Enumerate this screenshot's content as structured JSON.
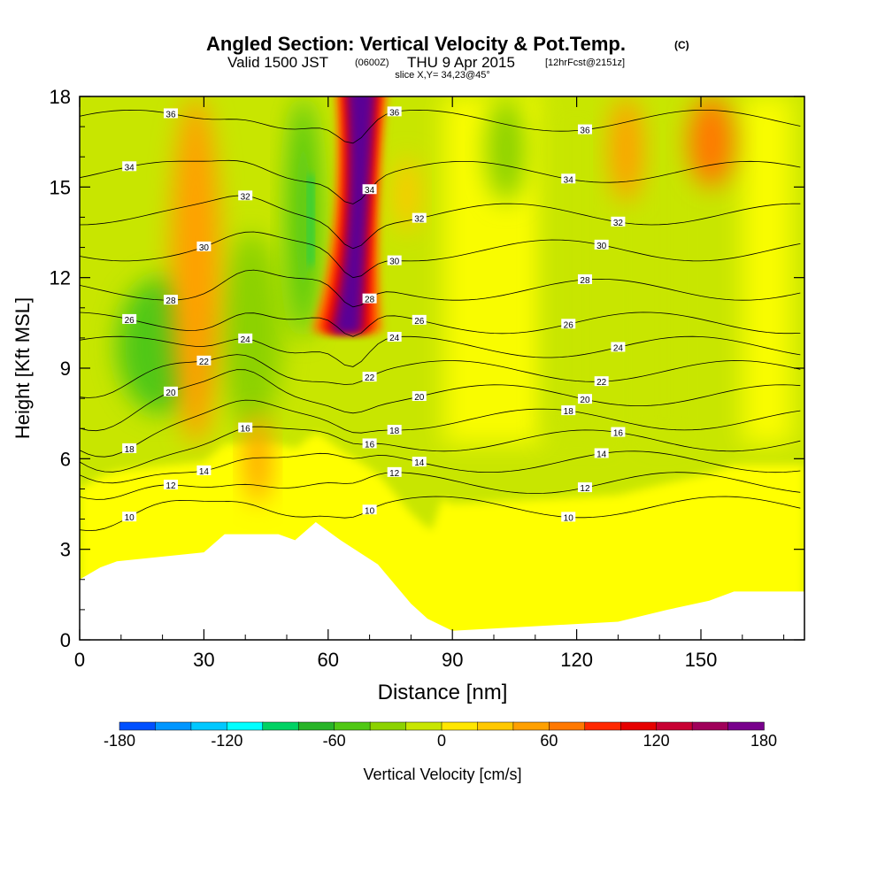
{
  "chart_data": {
    "type": "heatmap",
    "title": "Angled Section: Vertical Velocity & Pot.Temp.",
    "title_suffix": "(C)",
    "subtitle": {
      "valid": "Valid 1500 JST",
      "zulu": "(0600Z)",
      "date": "THU 9 Apr 2015",
      "forecast": "[12hrFcst@2151z]"
    },
    "slice_info": "slice X,Y= 34,23@45°",
    "xlabel": "Distance [nm]",
    "ylabel": "Height [Kft MSL]",
    "xlim": [
      0,
      175
    ],
    "ylim": [
      0,
      18
    ],
    "x_ticks": [
      "0",
      "30",
      "60",
      "90",
      "120",
      "150"
    ],
    "y_ticks": [
      "0",
      "3",
      "6",
      "9",
      "12",
      "15",
      "18"
    ],
    "colorbar": {
      "label": "Vertical Velocity [cm/s]",
      "tick_labels": [
        "-180",
        "-120",
        "-60",
        "0",
        "60",
        "120",
        "180"
      ],
      "range": [
        -180,
        180
      ],
      "colors": [
        "#0000ff",
        "#0050ff",
        "#0096ff",
        "#00c8ff",
        "#00ffff",
        "#00e6a0",
        "#00d264",
        "#28b428",
        "#50c814",
        "#8cd200",
        "#c8e600",
        "#ffff00",
        "#ffe600",
        "#ffc800",
        "#ffa000",
        "#ff7800",
        "#ff5000",
        "#ff2800",
        "#e60000",
        "#c80032",
        "#a0005a",
        "#78008c",
        "#5a0096"
      ]
    },
    "theta_contours": [
      {
        "label": "10",
        "mean_height": 4.4
      },
      {
        "label": "12",
        "mean_height": 5.2
      },
      {
        "label": "14",
        "mean_height": 5.9
      },
      {
        "label": "16",
        "mean_height": 6.6
      },
      {
        "label": "18",
        "mean_height": 7.3
      },
      {
        "label": "20",
        "mean_height": 8.1
      },
      {
        "label": "22",
        "mean_height": 8.9
      },
      {
        "label": "24",
        "mean_height": 9.7
      },
      {
        "label": "26",
        "mean_height": 10.5
      },
      {
        "label": "28",
        "mean_height": 11.6
      },
      {
        "label": "30",
        "mean_height": 12.9
      },
      {
        "label": "32",
        "mean_height": 14.1
      },
      {
        "label": "34",
        "mean_height": 15.5
      },
      {
        "label": "36",
        "mean_height": 17.2
      }
    ],
    "updraft_core": {
      "x_center": 68,
      "max_value": 180
    },
    "terrain_kft": [
      [
        0,
        2.0
      ],
      [
        5,
        2.4
      ],
      [
        9,
        2.6
      ],
      [
        30,
        2.9
      ],
      [
        35,
        3.5
      ],
      [
        48,
        3.5
      ],
      [
        52,
        3.3
      ],
      [
        57,
        3.9
      ],
      [
        63,
        3.3
      ],
      [
        72,
        2.5
      ],
      [
        80,
        1.2
      ],
      [
        84,
        0.7
      ],
      [
        90,
        0.3
      ],
      [
        130,
        0.6
      ],
      [
        142,
        1.0
      ],
      [
        152,
        1.3
      ],
      [
        158,
        1.6
      ],
      [
        175,
        1.6
      ]
    ],
    "updraft_zones": [
      {
        "x": [
          22,
          34
        ],
        "y": [
          6.5,
          18
        ],
        "strength": 50
      },
      {
        "x": [
          40,
          46
        ],
        "y": [
          4.5,
          7.5
        ],
        "strength": 45
      },
      {
        "x": [
          76,
          82
        ],
        "y": [
          13.5,
          16
        ],
        "strength": 40
      },
      {
        "x": [
          128,
          136
        ],
        "y": [
          14.5,
          18
        ],
        "strength": 45
      },
      {
        "x": [
          147,
          158
        ],
        "y": [
          15,
          18
        ],
        "strength": 60
      }
    ],
    "downdraft_zones": [
      {
        "x": [
          9,
          30
        ],
        "y": [
          7.5,
          12
        ],
        "strength": -45
      },
      {
        "x": [
          34,
          49
        ],
        "y": [
          7,
          13.5
        ],
        "strength": -40
      },
      {
        "x": [
          50,
          58
        ],
        "y": [
          10,
          18
        ],
        "strength": -50
      },
      {
        "x": [
          98,
          108
        ],
        "y": [
          14.5,
          18
        ],
        "strength": -25
      }
    ]
  }
}
